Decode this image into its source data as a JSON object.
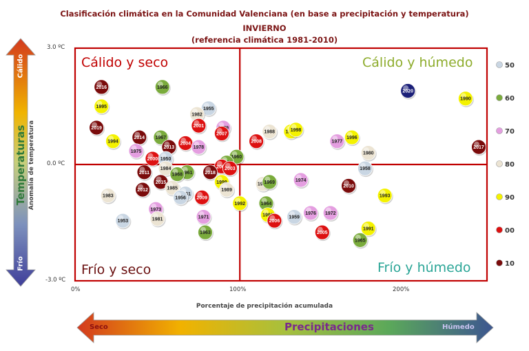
{
  "header": {
    "line1": "Clasificación climática en la Comunidad Valenciana (en base a precipitación y temperatura)",
    "line2": "INVIERNO",
    "line3": "(referencia climática 1981-2010)"
  },
  "quadrants": {
    "top_left": "Cálido y seco",
    "top_right": "Cálido y húmedo",
    "bottom_left": "Frío y seco",
    "bottom_right": "Frío y húmedo"
  },
  "colors": {
    "top_left": "#c00000",
    "top_right": "#8dac2c",
    "bottom_left": "#6a1010",
    "bottom_right": "#2aa596",
    "frame": "#c00000",
    "title": "#7b1414"
  },
  "temp_arrow": {
    "label": "Temperaturas",
    "hot": "Cálido",
    "cold": "Frío"
  },
  "precip_arrow": {
    "label": "Precipitaciones",
    "dry": "Seco",
    "wet": "Húmedo"
  },
  "chart_data": {
    "type": "scatter",
    "xlabel": "Porcentaje de precipitación acumulada",
    "ylabel": "Anomalía de temperatura",
    "xlim": [
      0,
      250
    ],
    "ylim": [
      -3.0,
      3.0
    ],
    "x_ticks": [
      "0%",
      "100%",
      "200%"
    ],
    "y_ticks": [
      "3.0 ºC",
      "0.0 ºC",
      "-3.0 ºC"
    ],
    "legend": [
      {
        "label": "50",
        "color": "#c9d6e3"
      },
      {
        "label": "60",
        "color": "#7aab3c"
      },
      {
        "label": "70",
        "color": "#e49ee0"
      },
      {
        "label": "80",
        "color": "#ece4d3"
      },
      {
        "label": "90",
        "color": "#f4f200"
      },
      {
        "label": "00",
        "color": "#dd1111"
      },
      {
        "label": "10",
        "color": "#7a0b0b"
      }
    ],
    "points": [
      {
        "year": "2016",
        "x": 16,
        "y": 2.0,
        "decade": "10"
      },
      {
        "year": "1966",
        "x": 53,
        "y": 2.0,
        "decade": "60"
      },
      {
        "year": "2020",
        "x": 202,
        "y": 1.9,
        "decade": "20"
      },
      {
        "year": "1990",
        "x": 237,
        "y": 1.7,
        "decade": "90"
      },
      {
        "year": "1995",
        "x": 16,
        "y": 1.5,
        "decade": "90"
      },
      {
        "year": "1955",
        "x": 81,
        "y": 1.45,
        "decade": "50"
      },
      {
        "year": "1982",
        "x": 74,
        "y": 1.3,
        "decade": "80"
      },
      {
        "year": "2001",
        "x": 75,
        "y": 1.0,
        "decade": "00"
      },
      {
        "year": "2019",
        "x": 13,
        "y": 0.95,
        "decade": "10"
      },
      {
        "year": "1979",
        "x": 90,
        "y": 0.95,
        "decade": "70"
      },
      {
        "year": "2007",
        "x": 89,
        "y": 0.8,
        "decade": "00"
      },
      {
        "year": "1988",
        "x": 118,
        "y": 0.85,
        "decade": "80"
      },
      {
        "year": "1997",
        "x": 131,
        "y": 0.85,
        "decade": "90"
      },
      {
        "year": "1998",
        "x": 134,
        "y": 0.9,
        "decade": "90"
      },
      {
        "year": "1977",
        "x": 159,
        "y": 0.6,
        "decade": "70"
      },
      {
        "year": "1996",
        "x": 168,
        "y": 0.7,
        "decade": "90"
      },
      {
        "year": "2017",
        "x": 245,
        "y": 0.45,
        "decade": "10"
      },
      {
        "year": "1994",
        "x": 23,
        "y": 0.6,
        "decade": "90"
      },
      {
        "year": "2014",
        "x": 39,
        "y": 0.7,
        "decade": "10"
      },
      {
        "year": "1967",
        "x": 52,
        "y": 0.7,
        "decade": "60"
      },
      {
        "year": "2013",
        "x": 57,
        "y": 0.45,
        "decade": "10"
      },
      {
        "year": "2004",
        "x": 67,
        "y": 0.55,
        "decade": "00"
      },
      {
        "year": "1978",
        "x": 75,
        "y": 0.45,
        "decade": "70"
      },
      {
        "year": "2008",
        "x": 110,
        "y": 0.6,
        "decade": "00"
      },
      {
        "year": "1980",
        "x": 178,
        "y": 0.3,
        "decade": "80"
      },
      {
        "year": "1975",
        "x": 37,
        "y": 0.35,
        "decade": "70"
      },
      {
        "year": "2000",
        "x": 47,
        "y": 0.15,
        "decade": "00"
      },
      {
        "year": "1950",
        "x": 55,
        "y": 0.15,
        "decade": "50"
      },
      {
        "year": "1960",
        "x": 98,
        "y": 0.2,
        "decade": "60"
      },
      {
        "year": "1962",
        "x": 92,
        "y": 0.05,
        "decade": "60"
      },
      {
        "year": "2002",
        "x": 89,
        "y": -0.05,
        "decade": "00"
      },
      {
        "year": "2003",
        "x": 94,
        "y": -0.1,
        "decade": "00"
      },
      {
        "year": "1958",
        "x": 176,
        "y": -0.1,
        "decade": "50"
      },
      {
        "year": "2011",
        "x": 42,
        "y": -0.2,
        "decade": "10"
      },
      {
        "year": "1984",
        "x": 55,
        "y": -0.1,
        "decade": "80"
      },
      {
        "year": "1961",
        "x": 68,
        "y": -0.2,
        "decade": "60"
      },
      {
        "year": "1968",
        "x": 62,
        "y": -0.25,
        "decade": "60"
      },
      {
        "year": "2018",
        "x": 82,
        "y": -0.2,
        "decade": "10"
      },
      {
        "year": "2015",
        "x": 52,
        "y": -0.45,
        "decade": "10"
      },
      {
        "year": "1985",
        "x": 59,
        "y": -0.6,
        "decade": "80"
      },
      {
        "year": "1999",
        "x": 89,
        "y": -0.45,
        "decade": "90"
      },
      {
        "year": "1989",
        "x": 92,
        "y": -0.65,
        "decade": "80"
      },
      {
        "year": "1987",
        "x": 114,
        "y": -0.5,
        "decade": "80"
      },
      {
        "year": "1969",
        "x": 118,
        "y": -0.45,
        "decade": "60"
      },
      {
        "year": "1974",
        "x": 137,
        "y": -0.4,
        "decade": "70"
      },
      {
        "year": "2010",
        "x": 166,
        "y": -0.55,
        "decade": "10"
      },
      {
        "year": "1983",
        "x": 20,
        "y": -0.8,
        "decade": "80"
      },
      {
        "year": "2012",
        "x": 41,
        "y": -0.65,
        "decade": "10"
      },
      {
        "year": "1951",
        "x": 67,
        "y": -0.75,
        "decade": "50"
      },
      {
        "year": "1956",
        "x": 64,
        "y": -0.85,
        "decade": "50"
      },
      {
        "year": "2009",
        "x": 77,
        "y": -0.85,
        "decade": "00"
      },
      {
        "year": "1993",
        "x": 188,
        "y": -0.8,
        "decade": "90"
      },
      {
        "year": "1992",
        "x": 100,
        "y": -1.0,
        "decade": "90"
      },
      {
        "year": "1964",
        "x": 116,
        "y": -1.0,
        "decade": "60"
      },
      {
        "year": "1973",
        "x": 49,
        "y": -1.15,
        "decade": "70"
      },
      {
        "year": "1981",
        "x": 50,
        "y": -1.4,
        "decade": "80"
      },
      {
        "year": "1953",
        "x": 29,
        "y": -1.45,
        "decade": "50"
      },
      {
        "year": "1971",
        "x": 78,
        "y": -1.35,
        "decade": "70"
      },
      {
        "year": "1991b",
        "label": "1991",
        "x": 117,
        "y": -1.3,
        "decade": "90"
      },
      {
        "year": "2006",
        "x": 121,
        "y": -1.45,
        "decade": "00"
      },
      {
        "year": "1959",
        "x": 133,
        "y": -1.35,
        "decade": "50"
      },
      {
        "year": "1976",
        "x": 143,
        "y": -1.25,
        "decade": "70"
      },
      {
        "year": "1972",
        "x": 155,
        "y": -1.25,
        "decade": "70"
      },
      {
        "year": "1991",
        "x": 178,
        "y": -1.65,
        "decade": "90"
      },
      {
        "year": "2005",
        "x": 150,
        "y": -1.75,
        "decade": "00"
      },
      {
        "year": "1963",
        "x": 79,
        "y": -1.75,
        "decade": "60"
      },
      {
        "year": "1965",
        "x": 173,
        "y": -1.95,
        "decade": "60"
      }
    ]
  }
}
